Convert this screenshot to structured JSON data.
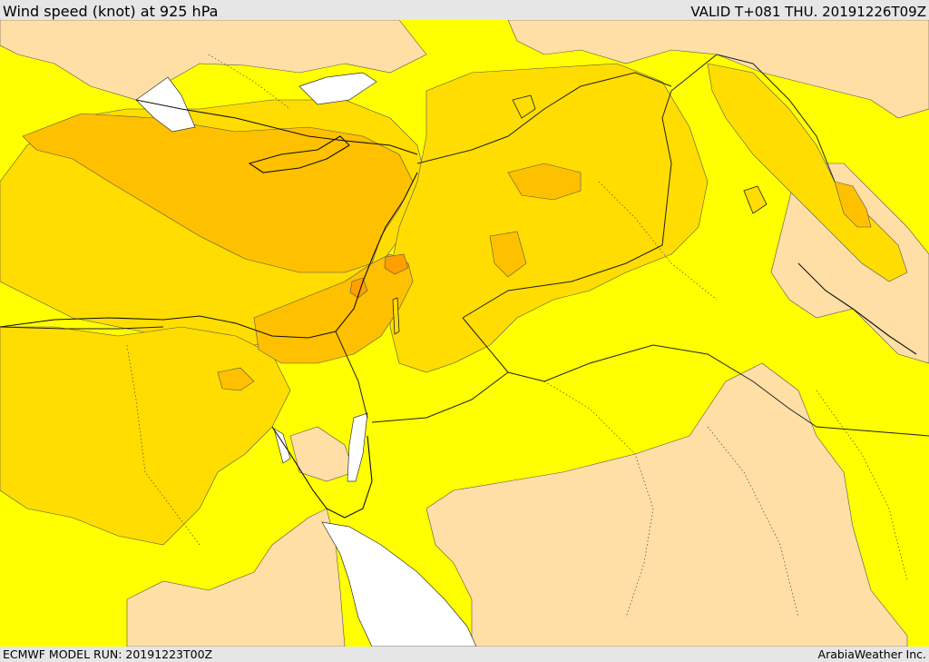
{
  "header": {
    "title": "Wind speed (knot) at 925 hPa",
    "valid_time": "VALID T+081 THU. 20191226T09Z"
  },
  "footer": {
    "model_run": "ECMWF MODEL RUN: 20191223T00Z",
    "credit": "ArabiaWeather Inc."
  },
  "colors": {
    "band_low": "#ffdfa6",
    "band_mid": "#ffff00",
    "band_high": "#ffdd00",
    "band_higher": "#ffc000",
    "band_peak": "#ffa000",
    "sea_no_data": "#ffffff",
    "frame": "#e6e6e6"
  }
}
